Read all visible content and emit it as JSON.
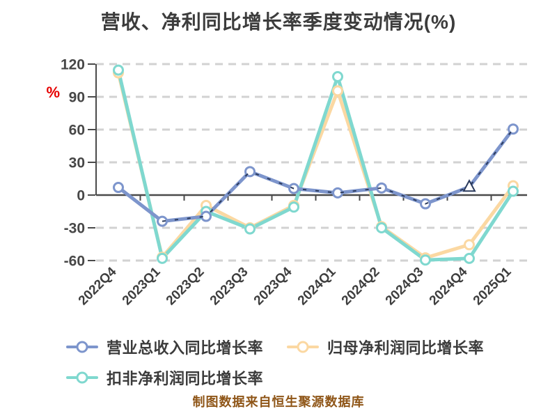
{
  "chart_data": {
    "type": "line",
    "title": "营收、净利同比增长率季度变动情况(%)",
    "categories": [
      "2022Q4",
      "2023Q1",
      "2023Q2",
      "2023Q3",
      "2023Q4",
      "2024Q1",
      "2024Q2",
      "2024Q3",
      "2024Q4",
      "2025Q1"
    ],
    "series": [
      {
        "key": "revenue",
        "name": "营业总收入同比增长率",
        "color": "#7d95cc",
        "marker": "circle",
        "values": [
          7,
          -24,
          -19.5,
          21.5,
          6,
          2,
          6.5,
          -8,
          7.5,
          60.5
        ]
      },
      {
        "key": "net-profit",
        "name": "归母净利润同比增长率",
        "color": "#fbd8a2",
        "marker": "circle",
        "values": [
          112,
          -57,
          -9.5,
          -30,
          -9.5,
          95.5,
          -29,
          -57.5,
          -45.5,
          8.5
        ]
      },
      {
        "key": "non-gaap-net-profit",
        "name": "扣非净利润同比增长率",
        "color": "#7fd8cf",
        "marker": "circle",
        "values": [
          114.5,
          -58,
          -15,
          -31,
          -11,
          108.5,
          -30,
          -59.5,
          -58,
          3.5
        ]
      }
    ],
    "overlay_dashed_line": {
      "description": "dark dashed highlight tracking the revenue series",
      "color": "#2b3a5c",
      "follows_series": "revenue",
      "from_index": 1,
      "to_index": 9,
      "triangle_marker_at_index": 8
    },
    "ylabel": "%",
    "ylabel_color": "#e60000",
    "yticks": [
      120,
      90,
      60,
      30,
      0,
      -30,
      -60
    ],
    "ylim": [
      -60,
      120
    ],
    "grid": "horizontal-dashed",
    "legend_position": "bottom-left"
  },
  "footer": {
    "note": "制图数据来自恒生聚源数据库"
  }
}
